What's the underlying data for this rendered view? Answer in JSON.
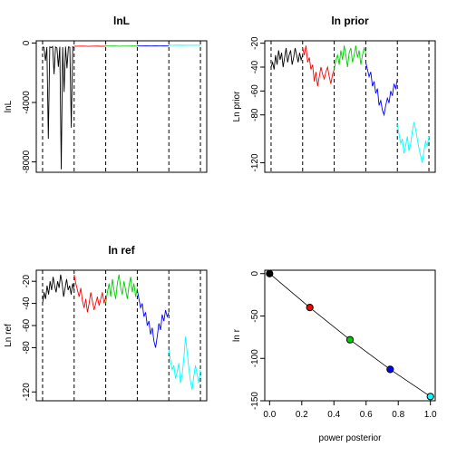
{
  "colors": {
    "black": "#000000",
    "red": "#ff0000",
    "green": "#00cd00",
    "blue": "#0000ff",
    "cyan": "#00ffff",
    "background": "#ffffff"
  },
  "chart_data": [
    {
      "type": "line",
      "title": "lnL",
      "xlabel": "",
      "ylabel": "lnL",
      "ylim": [
        -8700,
        150
      ],
      "yticks": [
        "0",
        "-4000",
        "-8000"
      ],
      "ytick_values": [
        0,
        -4000,
        -8000
      ],
      "x_axis_ticks": false,
      "segment_length": 100,
      "segment_boundaries": [
        0,
        100,
        200,
        300,
        400,
        500
      ],
      "series": [
        {
          "color": "black",
          "values": [
            -260,
            -300,
            -1200,
            -280,
            -6450,
            -260,
            -310,
            -240,
            -2100,
            -270,
            -330,
            -1600,
            -250,
            -8500,
            -280,
            -3300,
            -240,
            -1700,
            -260,
            -290,
            -5700,
            -250,
            -300
          ]
        },
        {
          "color": "red",
          "values": [
            -210,
            -215,
            -205,
            -220,
            -212,
            -208,
            -216,
            -210
          ]
        },
        {
          "color": "green",
          "values": [
            -200,
            -205,
            -198,
            -210,
            -202,
            -206,
            -200,
            -204
          ]
        },
        {
          "color": "blue",
          "values": [
            -190,
            -196,
            -192,
            -200,
            -194,
            -198,
            -192,
            -196
          ]
        },
        {
          "color": "cyan",
          "values": [
            -150,
            -152,
            -148,
            -155,
            -150,
            -153,
            -149,
            -151
          ]
        }
      ]
    },
    {
      "type": "line",
      "title": "ln prior",
      "xlabel": "",
      "ylabel": "Ln prior",
      "ylim": [
        -128,
        -18
      ],
      "yticks": [
        "-20",
        "-40",
        "-60",
        "-80",
        "-120"
      ],
      "ytick_values": [
        -20,
        -40,
        -60,
        -80,
        -120
      ],
      "x_axis_ticks": false,
      "segment_length": 100,
      "segment_boundaries": [
        0,
        100,
        200,
        300,
        400,
        500
      ],
      "series": [
        {
          "color": "black",
          "values": [
            -40,
            -36,
            -42,
            -30,
            -38,
            -26,
            -34,
            -28,
            -40,
            -32,
            -24,
            -36,
            -30,
            -26,
            -38,
            -32,
            -24,
            -30,
            -36,
            -28,
            -34,
            -30
          ]
        },
        {
          "color": "red",
          "values": [
            -24,
            -30,
            -22,
            -36,
            -32,
            -42,
            -38,
            -52,
            -44,
            -56,
            -48,
            -40,
            -46,
            -50,
            -44,
            -40,
            -48,
            -54,
            -46,
            -42
          ]
        },
        {
          "color": "green",
          "values": [
            -42,
            -34,
            -30,
            -38,
            -26,
            -34,
            -22,
            -30,
            -40,
            -28,
            -24,
            -36,
            -30,
            -22,
            -32,
            -26,
            -38,
            -30,
            -24,
            -28
          ]
        },
        {
          "color": "blue",
          "values": [
            -36,
            -42,
            -48,
            -44,
            -56,
            -52,
            -62,
            -58,
            -72,
            -68,
            -76,
            -80,
            -72,
            -66,
            -70,
            -60,
            -64,
            -54,
            -58,
            -50
          ]
        },
        {
          "color": "cyan",
          "values": [
            -88,
            -96,
            -104,
            -100,
            -112,
            -106,
            -98,
            -110,
            -104,
            -94,
            -86,
            -92,
            -100,
            -108,
            -114,
            -120,
            -110,
            -102,
            -106,
            -98
          ]
        }
      ]
    },
    {
      "type": "line",
      "title": "ln ref",
      "xlabel": "",
      "ylabel": "Ln ref",
      "ylim": [
        -128,
        -10
      ],
      "yticks": [
        "-20",
        "-40",
        "-60",
        "-80",
        "-120"
      ],
      "ytick_values": [
        -20,
        -40,
        -60,
        -80,
        -120
      ],
      "x_axis_ticks": false,
      "segment_length": 100,
      "segment_boundaries": [
        0,
        100,
        200,
        300,
        400,
        500
      ],
      "series": [
        {
          "color": "black",
          "values": [
            -40,
            -30,
            -36,
            -24,
            -32,
            -20,
            -28,
            -16,
            -24,
            -30,
            -20,
            -26,
            -14,
            -22,
            -34,
            -26,
            -18,
            -28,
            -24,
            -32,
            -22,
            -28
          ]
        },
        {
          "color": "red",
          "values": [
            -14,
            -22,
            -28,
            -34,
            -26,
            -38,
            -44,
            -36,
            -48,
            -40,
            -30,
            -38,
            -46,
            -40,
            -34,
            -42,
            -36,
            -30,
            -40,
            -34
          ]
        },
        {
          "color": "green",
          "values": [
            -40,
            -30,
            -22,
            -34,
            -18,
            -28,
            -36,
            -22,
            -14,
            -26,
            -32,
            -20,
            -28,
            -36,
            -24,
            -16,
            -30,
            -22,
            -34,
            -26
          ]
        },
        {
          "color": "blue",
          "values": [
            -28,
            -36,
            -44,
            -40,
            -52,
            -48,
            -60,
            -56,
            -68,
            -62,
            -74,
            -80,
            -70,
            -58,
            -64,
            -50,
            -56,
            -46,
            -52,
            -48
          ]
        },
        {
          "color": "cyan",
          "values": [
            -82,
            -92,
            -100,
            -96,
            -108,
            -102,
            -94,
            -112,
            -104,
            -90,
            -70,
            -84,
            -98,
            -110,
            -118,
            -106,
            -96,
            -104,
            -112,
            -100
          ]
        }
      ]
    },
    {
      "type": "scatter",
      "title": "",
      "xlabel": "power posterior",
      "ylabel": "ln r",
      "xlim": [
        -0.03,
        1.03
      ],
      "ylim": [
        -150,
        4
      ],
      "xticks": [
        "0.0",
        "0.2",
        "0.4",
        "0.6",
        "0.8",
        "1.0"
      ],
      "xtick_values": [
        0.0,
        0.2,
        0.4,
        0.6,
        0.8,
        1.0
      ],
      "yticks": [
        "0",
        "-50",
        "-100",
        "-150"
      ],
      "ytick_values": [
        0,
        -50,
        -100,
        -150
      ],
      "line_through_points": true,
      "points": [
        {
          "x": 0.0,
          "y": 0,
          "color": "black"
        },
        {
          "x": 0.25,
          "y": -40,
          "color": "red"
        },
        {
          "x": 0.5,
          "y": -78,
          "color": "green"
        },
        {
          "x": 0.75,
          "y": -113,
          "color": "blue"
        },
        {
          "x": 1.0,
          "y": -145,
          "color": "cyan"
        }
      ]
    }
  ]
}
